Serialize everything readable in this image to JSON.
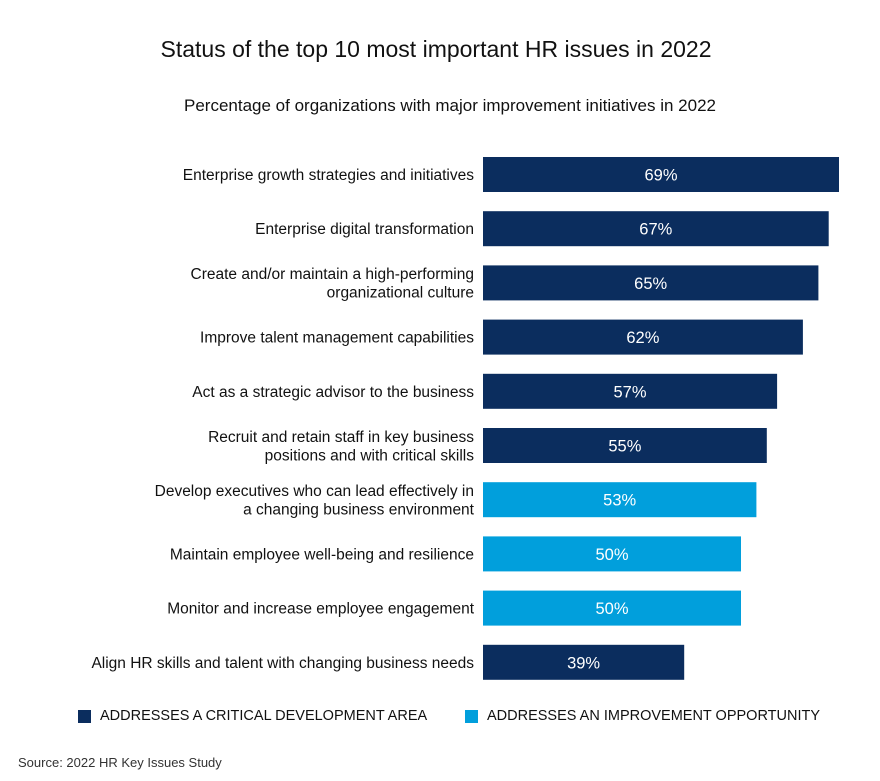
{
  "chart_data": {
    "type": "bar",
    "orientation": "horizontal",
    "title": "Status of the top 10 most important HR issues in 2022",
    "subtitle": "Percentage of organizations with major improvement initiatives in 2022",
    "unit": "%",
    "xlim": [
      0,
      69
    ],
    "categories": [
      [
        "Enterprise growth strategies and initiatives"
      ],
      [
        "Enterprise digital transformation"
      ],
      [
        "Create and/or maintain a high-performing",
        "organizational culture"
      ],
      [
        "Improve talent management capabilities"
      ],
      [
        "Act as a strategic advisor to the business"
      ],
      [
        "Recruit and retain staff in key business",
        "positions and with critical skills"
      ],
      [
        "Develop executives who can lead effectively in",
        "a changing business environment"
      ],
      [
        "Maintain employee well-being and resilience"
      ],
      [
        "Monitor and increase employee engagement"
      ],
      [
        "Align HR skills and talent with changing business needs"
      ]
    ],
    "values": [
      69,
      67,
      65,
      62,
      57,
      55,
      53,
      50,
      50,
      39
    ],
    "value_labels": [
      "69%",
      "67%",
      "65%",
      "62%",
      "57%",
      "55%",
      "53%",
      "50%",
      "50%",
      "39%"
    ],
    "groups": [
      "critical",
      "critical",
      "critical",
      "critical",
      "critical",
      "critical",
      "improvement",
      "improvement",
      "improvement",
      "critical"
    ],
    "colors": {
      "critical": "#0b2d5e",
      "improvement": "#019fdc"
    },
    "legend": [
      {
        "key": "critical",
        "label": "ADDRESSES A CRITICAL DEVELOPMENT AREA"
      },
      {
        "key": "improvement",
        "label": "ADDRESSES AN IMPROVEMENT OPPORTUNITY"
      }
    ]
  },
  "source": "Source: 2022 HR Key Issues Study"
}
